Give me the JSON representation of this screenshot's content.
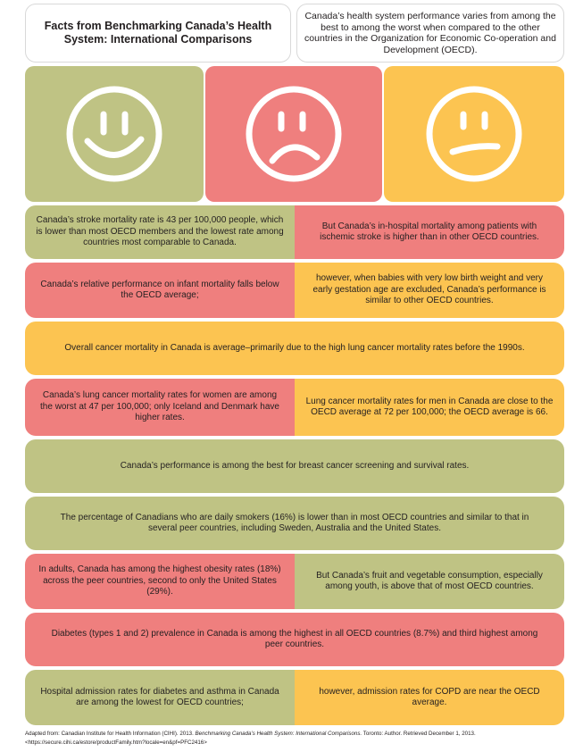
{
  "header": {
    "title": "Facts from Benchmarking Canada’s Health System: International Comparisons",
    "intro": "Canada’s health system performance varies from among the best to among the worst when compared to the other countries in the Organization for Economic Co-operation and Development (OECD)."
  },
  "faces": [
    {
      "icon": "smiley-face-icon",
      "color": "#bfc384"
    },
    {
      "icon": "sad-face-icon",
      "color": "#ef7f7e"
    },
    {
      "icon": "neutral-face-icon",
      "color": "#fcc451"
    }
  ],
  "colors": {
    "green": "#bfc384",
    "red": "#ef7f7e",
    "yellow": "#fcc451"
  },
  "rows": [
    {
      "left": "Canada’s stroke mortality rate is 43 per 100,000 people, which is lower than most OECD members and the lowest rate among countries most comparable to Canada.",
      "right": "But Canada’s in-hospital mortality among patients with ischemic stroke is higher than in other OECD countries."
    },
    {
      "left": "Canada’s relative performance on infant mortality falls below the OECD average;",
      "right": "however, when babies with very low birth weight and very early gestation age are excluded, Canada’s performance is similar to other OECD countries."
    },
    {
      "full": "Overall cancer mortality in Canada is average–primarily due to the high lung cancer mortality rates before the 1990s."
    },
    {
      "left": "Canada’s lung cancer mortality rates for women are among the worst at 47 per 100,000; only Iceland and Denmark have higher rates.",
      "right": "Lung cancer mortality rates for men in Canada are close to the OECD average at 72 per 100,000; the OECD average is 66."
    },
    {
      "full": "Canada’s performance is among the best for breast cancer screening and survival rates."
    },
    {
      "full": "The percentage of Canadians who are daily smokers (16%) is lower than in most OECD countries and similar to that in several peer countries, including Sweden, Australia and the United States."
    },
    {
      "left": "In adults, Canada has among the highest obesity rates (18%) across the peer countries, second to only the United States (29%).",
      "right": "But Canada’s fruit and vegetable consumption, especially among youth, is above that of most OECD countries."
    },
    {
      "full": "Diabetes (types 1 and 2) prevalence in Canada is among the highest in all OECD countries (8.7%) and third highest among peer countries."
    },
    {
      "left": "Hospital admission rates for diabetes and asthma in Canada are among the lowest for OECD countries;",
      "right": "however, admission rates for COPD are near the OECD average."
    }
  ],
  "footer": {
    "prefix": "Adapted from:  Canadian Institute for Health Information (CIHI). 2013.  ",
    "source_title": "Benchmarking Canada’s Health System: International Comparisons.",
    "suffix": "  Toronto: Author.  Retrieved December 1, 2013.",
    "url": "<https://secure.cihi.ca/estore/productFamily.htm?locale=en&pf=PFC2416>"
  }
}
